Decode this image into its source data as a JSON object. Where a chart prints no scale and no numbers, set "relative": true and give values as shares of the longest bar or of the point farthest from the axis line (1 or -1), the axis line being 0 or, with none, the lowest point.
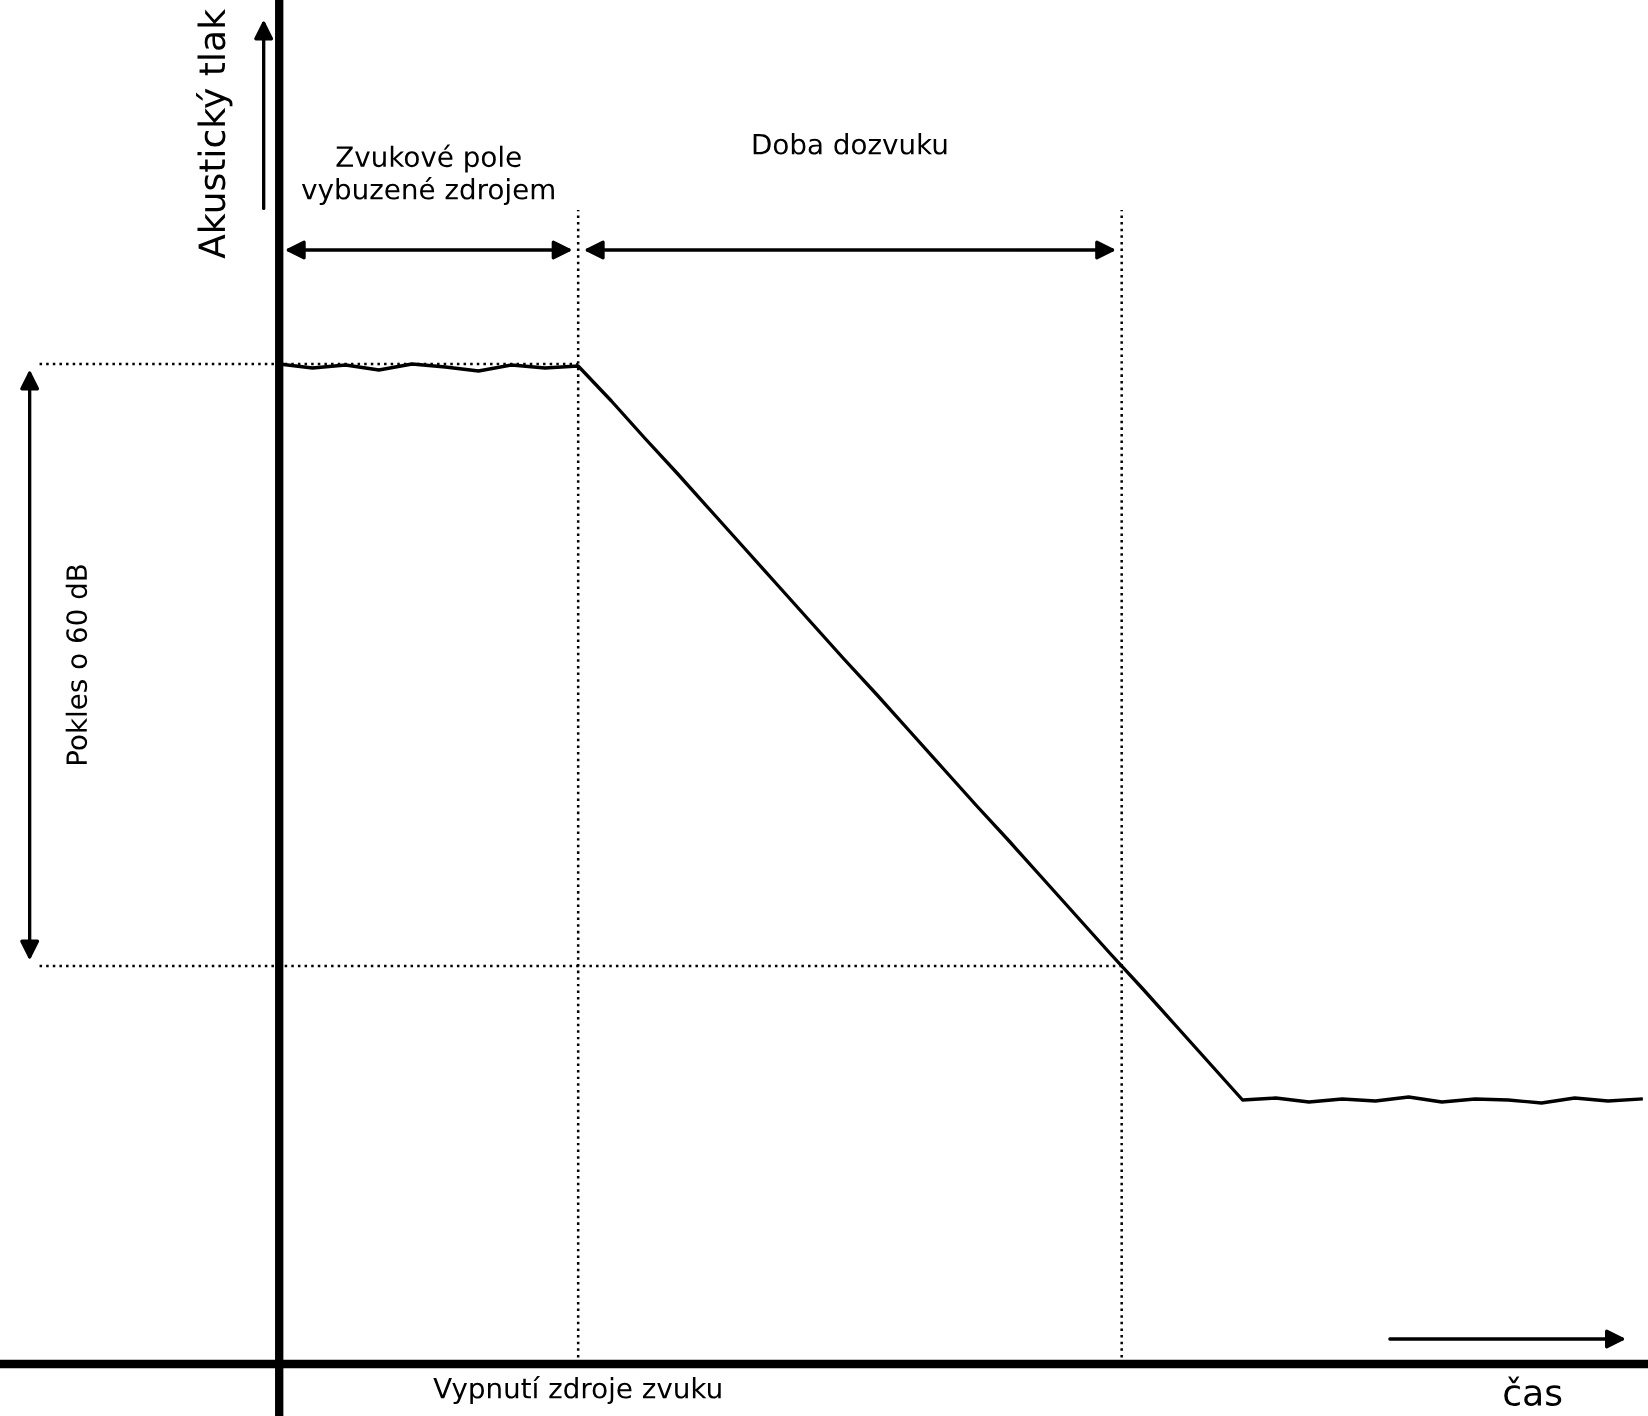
{
  "chart_data": {
    "type": "line",
    "relative": true,
    "xlabel": "čas",
    "ylabel": "Akustický tlak",
    "categories": [
      null,
      null,
      null,
      null,
      null,
      null,
      null,
      null,
      null,
      null,
      null,
      null,
      null,
      null,
      null,
      null,
      null,
      null,
      null,
      null,
      null,
      null,
      null,
      null,
      null,
      null,
      null,
      null,
      null,
      null,
      null,
      null,
      null,
      null,
      null,
      null,
      null,
      null,
      null,
      null,
      null,
      null
    ],
    "series": [
      {
        "color": "#000000",
        "values": [
          1.0,
          0.996,
          0.999,
          0.994,
          1.0,
          0.997,
          0.993,
          0.999,
          0.996,
          0.998,
          0.963,
          0.926,
          0.89,
          0.853,
          0.816,
          0.779,
          0.742,
          0.705,
          0.669,
          0.632,
          0.595,
          0.558,
          0.522,
          0.485,
          0.448,
          0.411,
          0.375,
          0.338,
          0.301,
          0.264,
          0.266,
          0.262,
          0.265,
          0.263,
          0.267,
          0.262,
          0.265,
          0.264,
          0.261,
          0.266,
          0.263,
          0.265
        ]
      }
    ],
    "ref_lines": [
      {
        "axis": "y",
        "value": 1,
        "line_style": "dotted"
      },
      {
        "axis": "y",
        "value": 0.398,
        "line_style": "dotted"
      }
    ],
    "annotations": [
      "Zvukové pole\nvybuzené zdrojem",
      "Doba dozvuku",
      "Pokles o 60 dB",
      "Vypnutí zdroje zvuku"
    ]
  }
}
